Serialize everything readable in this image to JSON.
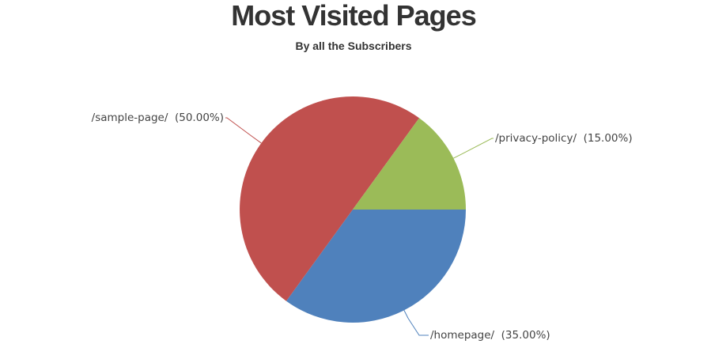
{
  "chart_data": {
    "type": "pie",
    "title": "Most Visited Pages",
    "subtitle": "By all the Subscribers",
    "slices": [
      {
        "label": "/homepage/",
        "value": 35.0,
        "display": "/homepage/  (35.00%)",
        "color": "#4f81bc"
      },
      {
        "label": "/sample-page/",
        "value": 50.0,
        "display": "/sample-page/  (50.00%)",
        "color": "#c0504e"
      },
      {
        "label": "/privacy-policy/",
        "value": 15.0,
        "display": "/privacy-policy/  (15.00%)",
        "color": "#9bbb58"
      }
    ],
    "start_angle_deg": 0,
    "direction": "clockwise",
    "label_placement": "outside"
  }
}
